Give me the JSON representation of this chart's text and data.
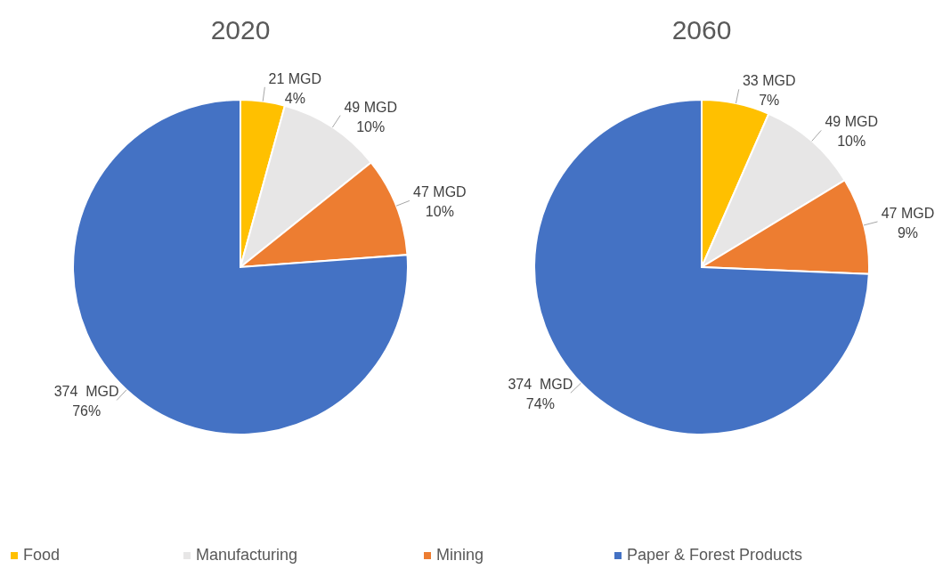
{
  "chart_data": [
    {
      "type": "pie",
      "title": "2020",
      "categories": [
        "Food",
        "Manufacturing",
        "Mining",
        "Paper & Forest Products"
      ],
      "values": [
        21,
        49,
        47,
        374
      ],
      "colors": [
        "#ffc000",
        "#e7e6e6",
        "#ed7d31",
        "#4472c4"
      ],
      "value_labels": [
        "21 MGD\n4%",
        "49 MGD\n10%",
        "47 MGD\n10%",
        "374  MGD\n76%"
      ],
      "legend": "bottom"
    },
    {
      "type": "pie",
      "title": "2060",
      "categories": [
        null,
        null,
        null,
        null
      ],
      "values": [
        33,
        49,
        47,
        374
      ],
      "colors": [
        "#ffc000",
        "#e7e6e6",
        "#ed7d31",
        "#4472c4"
      ],
      "value_labels": [
        "33 MGD\n7%",
        "49 MGD\n10%",
        "47 MGD\n9%",
        "374  MGD\n74%"
      ]
    }
  ]
}
